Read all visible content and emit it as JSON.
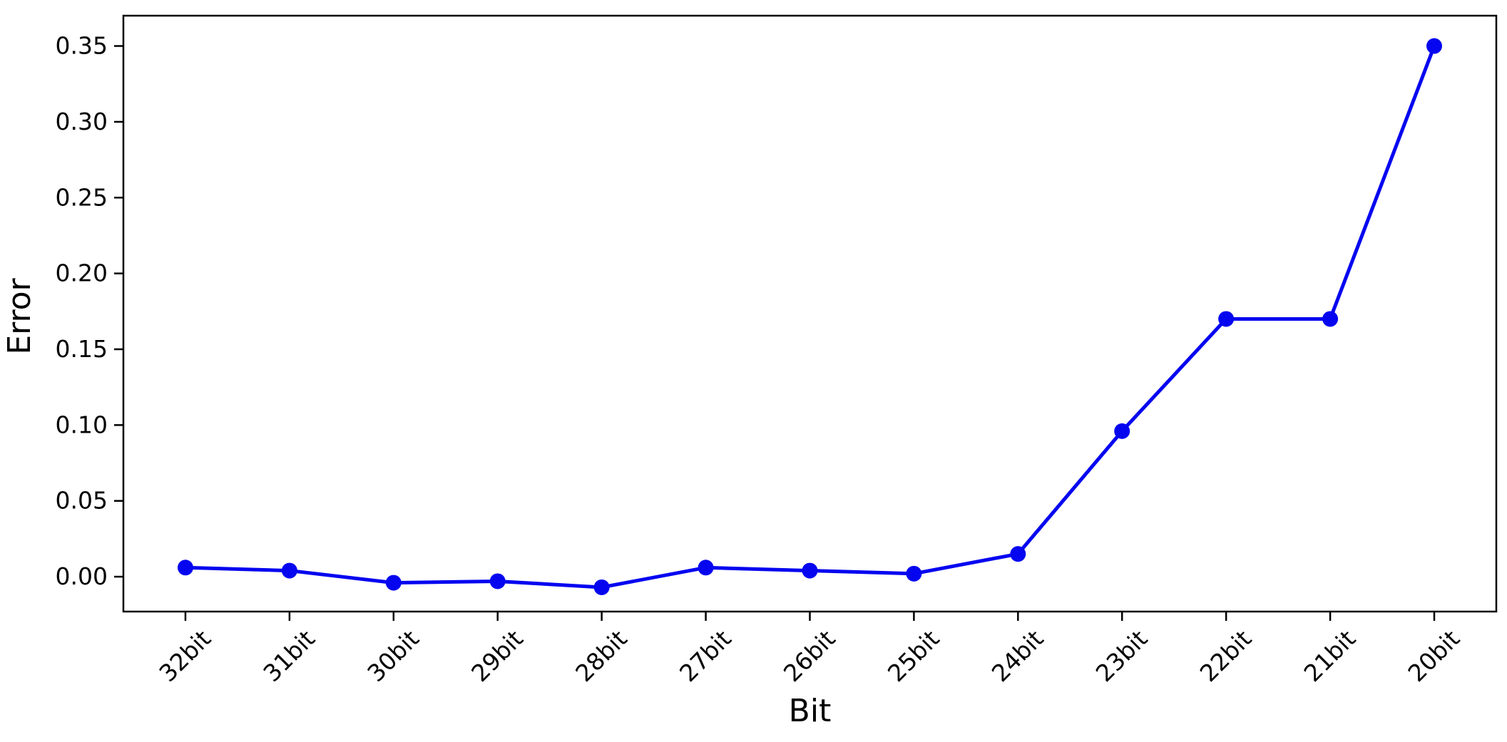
{
  "figure": {
    "background": "#ffffff"
  },
  "chart_data": {
    "type": "line",
    "title": "",
    "xlabel": "Bit",
    "ylabel": "Error",
    "categories": [
      "32bit",
      "31bit",
      "30bit",
      "29bit",
      "28bit",
      "27bit",
      "26bit",
      "25bit",
      "24bit",
      "23bit",
      "22bit",
      "21bit",
      "20bit"
    ],
    "series": [
      {
        "name": "Error",
        "values": [
          0.006,
          0.004,
          -0.004,
          -0.003,
          -0.007,
          0.006,
          0.004,
          0.002,
          0.015,
          0.096,
          0.17,
          0.17,
          0.35
        ],
        "line_color": "#0505f0",
        "marker": "circle",
        "marker_color": "#0505f0"
      }
    ],
    "ytick_values": [
      0.0,
      0.05,
      0.1,
      0.15,
      0.2,
      0.25,
      0.3,
      0.35
    ],
    "ytick_labels": [
      "0.00",
      "0.05",
      "0.10",
      "0.15",
      "0.20",
      "0.25",
      "0.30",
      "0.35"
    ],
    "ylim": [
      -0.023,
      0.37
    ],
    "grid": false,
    "legend": "none",
    "x_tick_rotation_deg": 45,
    "axis_color": "#000000"
  }
}
